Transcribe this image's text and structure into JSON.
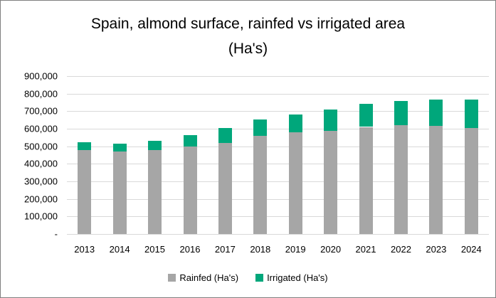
{
  "title": {
    "line1": "Spain, almond surface, rainfed vs irrigated area",
    "line2": "(Ha's)"
  },
  "chart_data": {
    "type": "bar",
    "stacked": true,
    "title": "Spain, almond surface, rainfed vs irrigated area (Ha's)",
    "categories": [
      "2013",
      "2014",
      "2015",
      "2016",
      "2017",
      "2018",
      "2019",
      "2020",
      "2021",
      "2022",
      "2023",
      "2024"
    ],
    "series": [
      {
        "name": "Rainfed (Ha's)",
        "color": "#A6A6A6",
        "values": [
          477000,
          469000,
          478000,
          497000,
          520000,
          560000,
          578000,
          589000,
          610000,
          620000,
          615000,
          606000
        ]
      },
      {
        "name": "Irrigated (Ha's)",
        "color": "#00A77B",
        "values": [
          48000,
          45000,
          55000,
          65000,
          85000,
          91000,
          104000,
          121000,
          133000,
          140000,
          151000,
          160000
        ]
      }
    ],
    "xlabel": "",
    "ylabel": "",
    "ylim": [
      0,
      900000
    ],
    "y_tick_step": 100000,
    "y_tick_labels": [
      "-",
      "100,000",
      "200,000",
      "300,000",
      "400,000",
      "500,000",
      "600,000",
      "700,000",
      "800,000",
      "900,000"
    ],
    "grid": "horizontal",
    "legend_position": "bottom"
  },
  "colors": {
    "gridline": "#D9D9D9",
    "frame_border": "#808080",
    "text": "#000000",
    "background": "#FFFFFF"
  }
}
